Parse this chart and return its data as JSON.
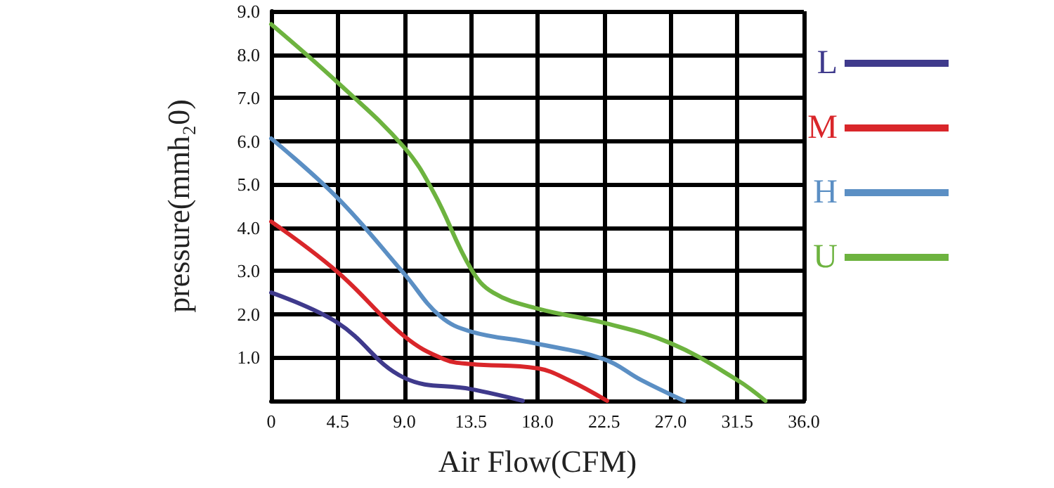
{
  "chart_data": {
    "type": "line",
    "xlabel": "Air Flow(CFM)",
    "ylabel": "pressure(mmh₂0)",
    "xlim": [
      0,
      36
    ],
    "ylim": [
      0,
      9
    ],
    "xticks": [
      0,
      {
        "value": 4.5,
        "label": "4.5"
      },
      {
        "value": 9,
        "label": "9.0"
      },
      {
        "value": 13.5,
        "label": "13.5"
      },
      {
        "value": 18,
        "label": "18.0"
      },
      {
        "value": 22.5,
        "label": "22.5"
      },
      {
        "value": 27,
        "label": "27.0"
      },
      {
        "value": 31.5,
        "label": "31.5"
      },
      {
        "value": 36,
        "label": "36.0"
      }
    ],
    "yticks": [
      {
        "value": 0,
        "label": null
      },
      {
        "value": 1,
        "label": "1.0"
      },
      {
        "value": 2,
        "label": "2.0"
      },
      {
        "value": 3,
        "label": "3.0"
      },
      {
        "value": 4,
        "label": "4.0"
      },
      {
        "value": 5,
        "label": "5.0"
      },
      {
        "value": 6,
        "label": "6.0"
      },
      {
        "value": 7,
        "label": "7.0"
      },
      {
        "value": 8,
        "label": "8.0"
      },
      {
        "value": 9,
        "label": "9.0"
      }
    ],
    "grid": true,
    "legend": "right",
    "marker": "none",
    "line_style": "solid",
    "series": [
      {
        "name": "L",
        "color": "#3f3a8c",
        "x": [
          0,
          4.5,
          9,
          13.5,
          17
        ],
        "values": [
          2.5,
          1.8,
          0.53,
          0.27,
          0
        ]
      },
      {
        "name": "M",
        "color": "#d9262a",
        "x": [
          0,
          4.5,
          9,
          11.7,
          13.5,
          18,
          20.1,
          22.7
        ],
        "values": [
          4.14,
          2.97,
          1.49,
          0.96,
          0.85,
          0.75,
          0.48,
          0
        ]
      },
      {
        "name": "H",
        "color": "#5b8fc4",
        "x": [
          0,
          4.5,
          9,
          11.4,
          13.5,
          17.8,
          22.5,
          25,
          27.9
        ],
        "values": [
          6.06,
          4.68,
          2.93,
          1.96,
          1.6,
          1.33,
          0.96,
          0.48,
          0
        ]
      },
      {
        "name": "U",
        "color": "#6db33f",
        "x": [
          0,
          4.5,
          9,
          11,
          13.5,
          15,
          18,
          22.5,
          27,
          31.5,
          33.4
        ],
        "values": [
          8.7,
          7.35,
          5.85,
          4.8,
          3.05,
          2.5,
          2.13,
          1.8,
          1.33,
          0.48,
          0
        ]
      }
    ]
  }
}
